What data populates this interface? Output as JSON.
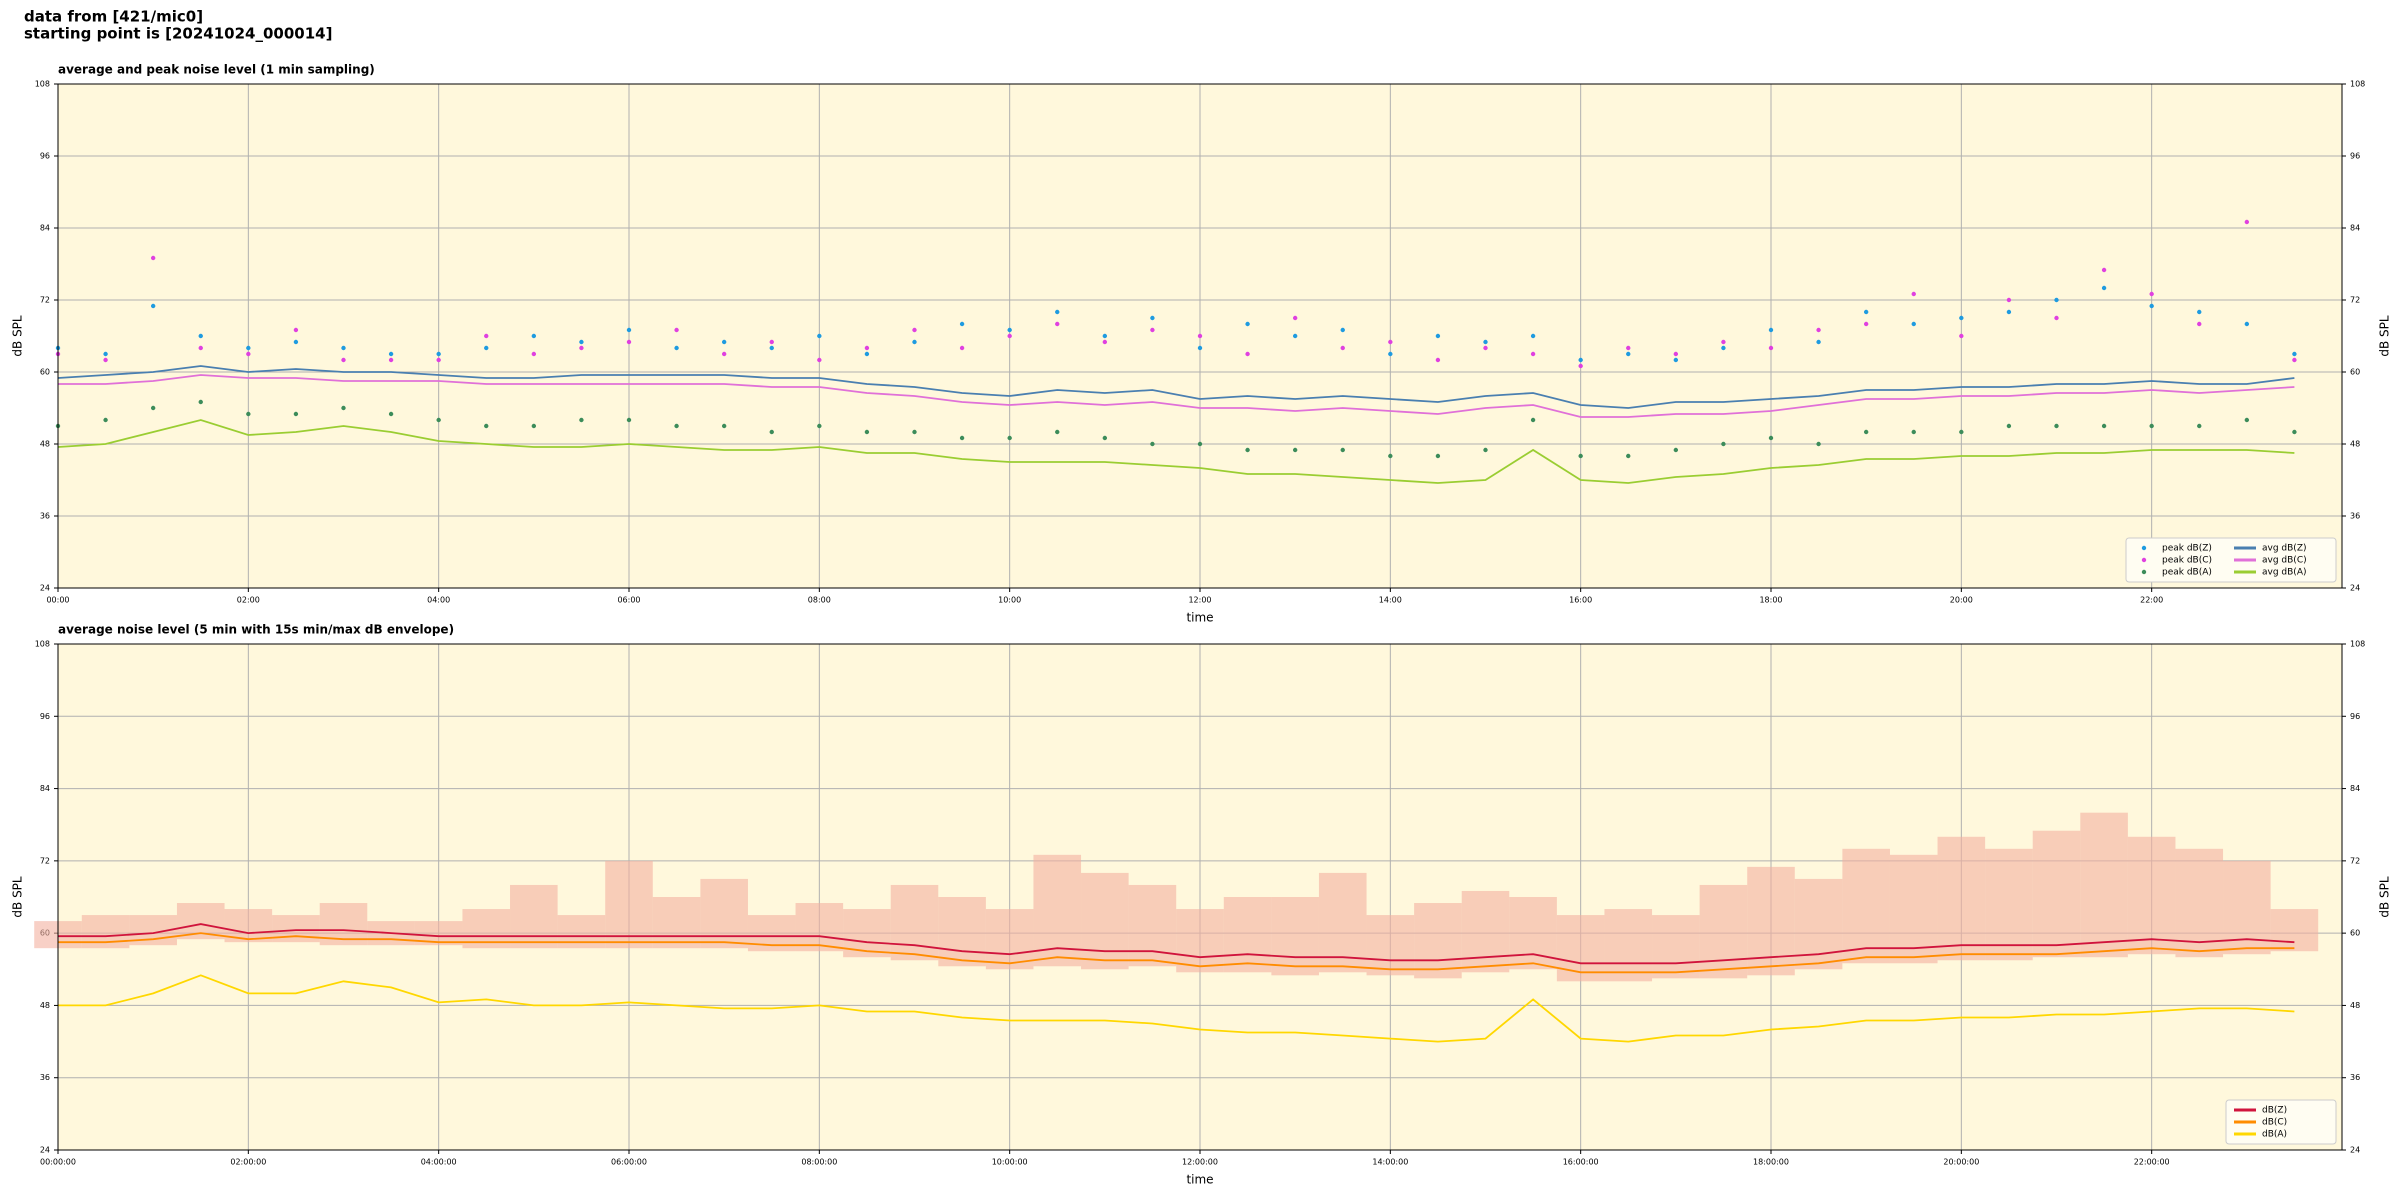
{
  "header": {
    "source": "data from [421/mic0]",
    "start": "starting point is [20241024_000014]"
  },
  "chart_data": [
    {
      "type": "line",
      "title": "average and peak noise level (1 min sampling)",
      "x_label": "time",
      "y_label": "dB SPL",
      "background": "#fff8dc",
      "grid": true,
      "legend": "lower right",
      "legend_columns": 2,
      "xlim": [
        0,
        24
      ],
      "ylim": [
        24,
        108
      ],
      "yticks": [
        24,
        36,
        48,
        60,
        72,
        84,
        96,
        108
      ],
      "xticks": [
        {
          "value": 0,
          "label": "00:00"
        },
        {
          "value": 2,
          "label": "02:00"
        },
        {
          "value": 4,
          "label": "04:00"
        },
        {
          "value": 6,
          "label": "06:00"
        },
        {
          "value": 8,
          "label": "08:00"
        },
        {
          "value": 10,
          "label": "10:00"
        },
        {
          "value": 12,
          "label": "12:00"
        },
        {
          "value": 14,
          "label": "14:00"
        },
        {
          "value": 16,
          "label": "16:00"
        },
        {
          "value": 18,
          "label": "18:00"
        },
        {
          "value": 20,
          "label": "20:00"
        },
        {
          "value": 22,
          "label": "22:00"
        }
      ],
      "x": [
        0,
        0.5,
        1,
        1.5,
        2,
        2.5,
        3,
        3.5,
        4,
        4.5,
        5,
        5.5,
        6,
        6.5,
        7,
        7.5,
        8,
        8.5,
        9,
        9.5,
        10,
        10.5,
        11,
        11.5,
        12,
        12.5,
        13,
        13.5,
        14,
        14.5,
        15,
        15.5,
        16,
        16.5,
        17,
        17.5,
        18,
        18.5,
        19,
        19.5,
        20,
        20.5,
        21,
        21.5,
        22,
        22.5,
        23,
        23.5
      ],
      "series": [
        {
          "name": "peak dB(Z)",
          "style": "markers",
          "color": "#1e9be0",
          "values": [
            64,
            63,
            71,
            66,
            64,
            65,
            64,
            63,
            63,
            64,
            66,
            65,
            67,
            64,
            65,
            64,
            66,
            63,
            65,
            68,
            67,
            70,
            66,
            69,
            64,
            68,
            66,
            67,
            63,
            66,
            65,
            66,
            62,
            63,
            62,
            64,
            67,
            65,
            70,
            68,
            69,
            70,
            72,
            74,
            71,
            70,
            68,
            63
          ]
        },
        {
          "name": "peak dB(C)",
          "style": "markers",
          "color": "#e040e0",
          "values": [
            63,
            62,
            79,
            64,
            63,
            67,
            62,
            62,
            62,
            66,
            63,
            64,
            65,
            67,
            63,
            65,
            62,
            64,
            67,
            64,
            66,
            68,
            65,
            67,
            66,
            63,
            69,
            64,
            65,
            62,
            64,
            63,
            61,
            64,
            63,
            65,
            64,
            67,
            68,
            73,
            66,
            72,
            69,
            77,
            73,
            68,
            85,
            62
          ]
        },
        {
          "name": "peak dB(A)",
          "style": "markers",
          "color": "#3c8c5a",
          "values": [
            51,
            52,
            54,
            55,
            53,
            53,
            54,
            53,
            52,
            51,
            51,
            52,
            52,
            51,
            51,
            50,
            51,
            50,
            50,
            49,
            49,
            50,
            49,
            48,
            48,
            47,
            47,
            47,
            46,
            46,
            47,
            52,
            46,
            46,
            47,
            48,
            49,
            48,
            50,
            50,
            50,
            51,
            51,
            51,
            51,
            51,
            52,
            50
          ]
        },
        {
          "name": "avg dB(Z)",
          "style": "line",
          "color": "#4a7fb0",
          "values": [
            59,
            59.5,
            60,
            61,
            60,
            60.5,
            60,
            60,
            59.5,
            59,
            59,
            59.5,
            59.5,
            59.5,
            59.5,
            59,
            59,
            58,
            57.5,
            56.5,
            56,
            57,
            56.5,
            57,
            55.5,
            56,
            55.5,
            56,
            55.5,
            55,
            56,
            56.5,
            54.5,
            54,
            55,
            55,
            55.5,
            56,
            57,
            57,
            57.5,
            57.5,
            58,
            58,
            58.5,
            58,
            58,
            59
          ]
        },
        {
          "name": "avg dB(C)",
          "style": "line",
          "color": "#e070d8",
          "values": [
            58,
            58,
            58.5,
            59.5,
            59,
            59,
            58.5,
            58.5,
            58.5,
            58,
            58,
            58,
            58,
            58,
            58,
            57.5,
            57.5,
            56.5,
            56,
            55,
            54.5,
            55,
            54.5,
            55,
            54,
            54,
            53.5,
            54,
            53.5,
            53,
            54,
            54.5,
            52.5,
            52.5,
            53,
            53,
            53.5,
            54.5,
            55.5,
            55.5,
            56,
            56,
            56.5,
            56.5,
            57,
            56.5,
            57,
            57.5
          ]
        },
        {
          "name": "avg dB(A)",
          "style": "line",
          "color": "#9acd32",
          "values": [
            47.5,
            48,
            50,
            52,
            49.5,
            50,
            51,
            50,
            48.5,
            48,
            47.5,
            47.5,
            48,
            47.5,
            47,
            47,
            47.5,
            46.5,
            46.5,
            45.5,
            45,
            45,
            45,
            44.5,
            44,
            43,
            43,
            42.5,
            42,
            41.5,
            42,
            47,
            42,
            41.5,
            42.5,
            43,
            44,
            44.5,
            45.5,
            45.5,
            46,
            46,
            46.5,
            46.5,
            47,
            47,
            47,
            46.5
          ]
        }
      ]
    },
    {
      "type": "line",
      "title": "average noise level (5 min with 15s min/max dB envelope)",
      "x_label": "time",
      "y_label": "dB SPL",
      "background": "#fff8dc",
      "grid": true,
      "legend": "lower right",
      "legend_columns": 1,
      "xlim": [
        0,
        24
      ],
      "ylim": [
        24,
        108
      ],
      "yticks": [
        24,
        36,
        48,
        60,
        72,
        84,
        96,
        108
      ],
      "xticks": [
        {
          "value": 0,
          "label": "00:00:00"
        },
        {
          "value": 2,
          "label": "02:00:00"
        },
        {
          "value": 4,
          "label": "04:00:00"
        },
        {
          "value": 6,
          "label": "06:00:00"
        },
        {
          "value": 8,
          "label": "08:00:00"
        },
        {
          "value": 10,
          "label": "10:00:00"
        },
        {
          "value": 12,
          "label": "12:00:00"
        },
        {
          "value": 14,
          "label": "14:00:00"
        },
        {
          "value": 16,
          "label": "16:00:00"
        },
        {
          "value": 18,
          "label": "18:00:00"
        },
        {
          "value": 20,
          "label": "20:00:00"
        },
        {
          "value": 22,
          "label": "22:00:00"
        }
      ],
      "x": [
        0,
        0.5,
        1,
        1.5,
        2,
        2.5,
        3,
        3.5,
        4,
        4.5,
        5,
        5.5,
        6,
        6.5,
        7,
        7.5,
        8,
        8.5,
        9,
        9.5,
        10,
        10.5,
        11,
        11.5,
        12,
        12.5,
        13,
        13.5,
        14,
        14.5,
        15,
        15.5,
        16,
        16.5,
        17,
        17.5,
        18,
        18.5,
        19,
        19.5,
        20,
        20.5,
        21,
        21.5,
        22,
        22.5,
        23,
        23.5
      ],
      "envelope": {
        "color": "#f4b0a0",
        "upper": [
          62,
          63,
          63,
          65,
          64,
          63,
          65,
          62,
          62,
          64,
          68,
          63,
          72,
          66,
          69,
          63,
          65,
          64,
          68,
          66,
          64,
          73,
          70,
          68,
          64,
          66,
          66,
          70,
          63,
          65,
          67,
          66,
          63,
          64,
          63,
          68,
          71,
          69,
          74,
          73,
          76,
          74,
          77,
          80,
          76,
          74,
          72,
          64
        ],
        "lower": [
          57.5,
          57.5,
          58,
          59,
          58.5,
          58.5,
          58,
          58,
          58,
          57.5,
          57.5,
          57.5,
          57.5,
          57.5,
          57.5,
          57,
          57,
          56,
          55.5,
          54.5,
          54,
          54.5,
          54,
          54.5,
          53.5,
          53.5,
          53,
          53.5,
          53,
          52.5,
          53.5,
          54,
          52,
          52,
          52.5,
          52.5,
          53,
          54,
          55,
          55,
          55.5,
          55.5,
          56,
          56,
          56.5,
          56,
          56.5,
          57
        ]
      },
      "series": [
        {
          "name": "dB(Z)",
          "style": "line",
          "color": "#d0143c",
          "values": [
            59.5,
            59.5,
            60,
            61.5,
            60,
            60.5,
            60.5,
            60,
            59.5,
            59.5,
            59.5,
            59.5,
            59.5,
            59.5,
            59.5,
            59.5,
            59.5,
            58.5,
            58,
            57,
            56.5,
            57.5,
            57,
            57,
            56,
            56.5,
            56,
            56,
            55.5,
            55.5,
            56,
            56.5,
            55,
            55,
            55,
            55.5,
            56,
            56.5,
            57.5,
            57.5,
            58,
            58,
            58,
            58.5,
            59,
            58.5,
            59,
            58.5
          ]
        },
        {
          "name": "dB(C)",
          "style": "line",
          "color": "#ff8c00",
          "values": [
            58.5,
            58.5,
            59,
            60,
            59,
            59.5,
            59,
            59,
            58.5,
            58.5,
            58.5,
            58.5,
            58.5,
            58.5,
            58.5,
            58,
            58,
            57,
            56.5,
            55.5,
            55,
            56,
            55.5,
            55.5,
            54.5,
            55,
            54.5,
            54.5,
            54,
            54,
            54.5,
            55,
            53.5,
            53.5,
            53.5,
            54,
            54.5,
            55,
            56,
            56,
            56.5,
            56.5,
            56.5,
            57,
            57.5,
            57,
            57.5,
            57.5
          ]
        },
        {
          "name": "dB(A)",
          "style": "line",
          "color": "#ffd700",
          "values": [
            48,
            48,
            50,
            53,
            50,
            50,
            52,
            51,
            48.5,
            49,
            48,
            48,
            48.5,
            48,
            47.5,
            47.5,
            48,
            47,
            47,
            46,
            45.5,
            45.5,
            45.5,
            45,
            44,
            43.5,
            43.5,
            43,
            42.5,
            42,
            42.5,
            49,
            42.5,
            42,
            43,
            43,
            44,
            44.5,
            45.5,
            45.5,
            46,
            46,
            46.5,
            46.5,
            47,
            47.5,
            47.5,
            47
          ]
        }
      ]
    }
  ]
}
